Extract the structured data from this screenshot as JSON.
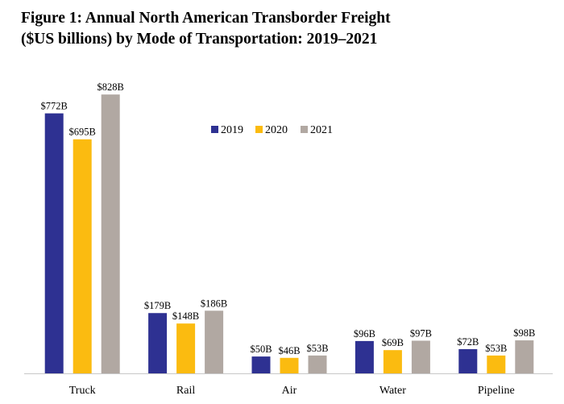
{
  "chart_data": {
    "type": "bar",
    "title_lines": [
      "Figure 1: Annual North American Transborder Freight",
      "($US billions) by Mode of Transportation: 2019–2021"
    ],
    "categories": [
      "Truck",
      "Rail",
      "Air",
      "Water",
      "Pipeline"
    ],
    "series": [
      {
        "name": "2019",
        "color": "#2E3192",
        "values": [
          772,
          179,
          50,
          96,
          72
        ],
        "labels": [
          "$772B",
          "$179B",
          "$50B",
          "$96B",
          "$72B"
        ]
      },
      {
        "name": "2020",
        "color": "#FBBB10",
        "values": [
          695,
          148,
          46,
          69,
          53
        ],
        "labels": [
          "$695B",
          "$148B",
          "$46B",
          "$69B",
          "$53B"
        ]
      },
      {
        "name": "2021",
        "color": "#B1A8A2",
        "values": [
          828,
          186,
          53,
          97,
          98
        ],
        "labels": [
          "$828B",
          "$186B",
          "$53B",
          "$97B",
          "$98B"
        ]
      }
    ],
    "xlabel": "",
    "ylabel": "",
    "ylim": [
      0,
      850
    ],
    "grid": false,
    "legend": "top-center",
    "value_labels": true
  }
}
